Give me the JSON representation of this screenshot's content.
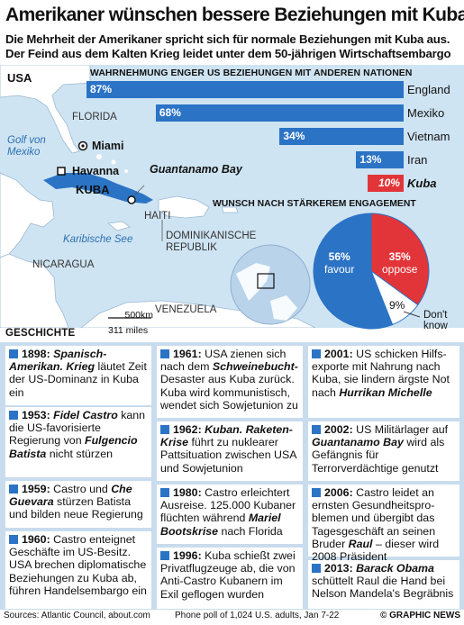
{
  "header": {
    "title": "Amerikaner wünschen bessere Beziehungen mit Kuba",
    "subtitle_line1": "Die Mehrheit der Amerikaner spricht sich für normale Beziehungen mit Kuba aus.",
    "subtitle_line2": "Der Feind aus dem Kalten Krieg leidet unter dem 50-jährigen Wirtschaftsembargo"
  },
  "map": {
    "usa": "USA",
    "florida": "FLORIDA",
    "golf_line1": "Golf von",
    "golf_line2": "Mexiko",
    "miami": "Miami",
    "havanna": "Havanna",
    "kuba": "KUBA",
    "guantanamo": "Guantanamo Bay",
    "haiti": "HAITI",
    "dom_line1": "DOMINIKANISCHE",
    "dom_line2": "REPUBLIK",
    "karibische": "Karibische See",
    "nicaragua": "NICARAGUA",
    "venezuela": "VENEZUELA",
    "scale_km": "500km",
    "scale_miles": "311 miles",
    "colors": {
      "sea": "#cfe4f3",
      "land": "#ffffff",
      "cuba": "#2a73c5"
    }
  },
  "chart_data": [
    {
      "type": "bar",
      "title": "Wahrnehmung enger US Beziehungen mit Anderen Nationen",
      "categories": [
        "England",
        "Mexiko",
        "Vietnam",
        "Iran",
        "Kuba"
      ],
      "values": [
        87,
        68,
        34,
        13,
        10
      ],
      "labels": [
        "87%",
        "68%",
        "34%",
        "13%",
        "10%"
      ],
      "orientation": "horizontal",
      "colors": [
        "#2a73c5",
        "#2a73c5",
        "#2a73c5",
        "#2a73c5",
        "#e2353a"
      ]
    },
    {
      "type": "pie",
      "title": "Wunsch nach Stärkerem Engagement",
      "categories": [
        "favour",
        "oppose",
        "Don't know"
      ],
      "values": [
        56,
        35,
        9
      ],
      "labels": [
        "56%",
        "35%",
        "9%"
      ],
      "colors": [
        "#2a73c5",
        "#e2353a",
        "#ffffff"
      ]
    }
  ],
  "timeline": {
    "heading": "GESCHICHTE",
    "cards": [
      {
        "year": "1898:",
        "lead": "Spanisch-Amerikan. Krieg",
        "text": " läutet Zeit der US-Dominanz in Kuba ein"
      },
      {
        "year": "1953:",
        "lead": "Fidel Castro",
        "text": " kann die US-favorisierte Regierung von ",
        "lead2": "Fulgencio Batista",
        "text2": " nicht stürzen"
      },
      {
        "year": "1959:",
        "text": " Castro und ",
        "lead": "Che Guevara",
        "text2": " stürzen Batista und bilden neue Regierung"
      },
      {
        "year": "1960:",
        "text": " Castro enteignet Geschäfte im US-Besitz. USA brechen diplomatische Beziehungen zu Kuba ab, führen Handelsembargo ein"
      },
      {
        "year": "1961:",
        "text": " USA zienen sich nach dem ",
        "lead": "Schweinebucht-",
        "text2": "Desaster aus Kuba zurück. Kuba wird kommunistisch, wendet sich Sowjetunion zu"
      },
      {
        "year": "1962:",
        "lead": "Kuban. Raketen-Krise",
        "text": " führt zu nuklearer Pattsituation zwischen USA und Sowjetunion"
      },
      {
        "year": "1980:",
        "text": " Castro erleichtert Ausreise. 125.000 Kubaner flüchten während ",
        "lead": "Mariel Bootskrise",
        "text2": " nach Florida"
      },
      {
        "year": "1996:",
        "text": " Kuba schießt zwei Privatflugzeuge ab, die von Anti-Castro Kubanern im Exil geflogen wurden"
      },
      {
        "year": "2001:",
        "text": " US schicken Hilfs-exporte mit Nahrung nach Kuba, sie lindern ärgste Not nach ",
        "lead": "Hurrikan Michelle"
      },
      {
        "year": "2002:",
        "text": " US Militärlager auf ",
        "lead": "Guantanamo Bay",
        "text2": " wird als Gefängnis für Terrorverdächtige genutzt"
      },
      {
        "year": "2006:",
        "text": " Castro leidet an ernsten Gesundheitspro-blemen und übergibt das Tagesgeschäft an seinen Bruder ",
        "lead": "Raul",
        "text2": " – dieser wird 2008 Präsident"
      },
      {
        "year": "2013:",
        "lead": "Barack Obama",
        "text": " schüttelt Raul die Hand bei Nelson Mandela's Begräbnis"
      }
    ]
  },
  "footer": {
    "sources": "Sources: Atlantic Council, about.com",
    "poll": "Phone poll of 1,024 U.S. adults, Jan 7-22",
    "logo": "© GRAPHIC NEWS"
  }
}
